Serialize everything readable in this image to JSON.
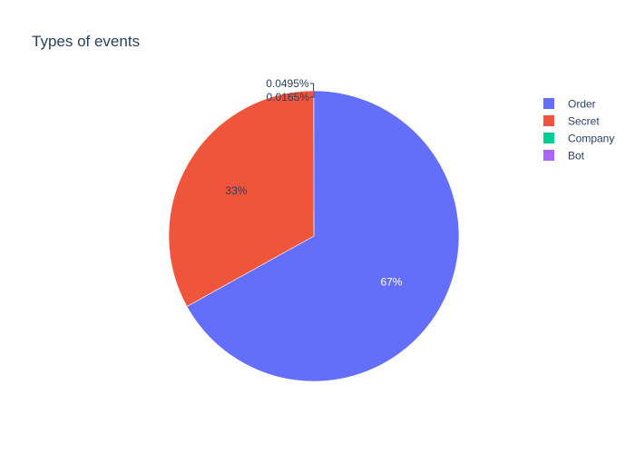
{
  "chart_data": {
    "type": "pie",
    "title": "Types of events",
    "categories": [
      "Order",
      "Secret",
      "Company",
      "Bot"
    ],
    "values": [
      67.0,
      33.0,
      0.0495,
      0.0165
    ],
    "labels": [
      "67%",
      "33%",
      "0.0495%",
      "0.0165%"
    ],
    "colors": [
      "#636efa",
      "#ef553b",
      "#00cc96",
      "#ab63fa"
    ],
    "label_colors": [
      "#ffffff",
      "#2a3f5f",
      "#2a3f5f",
      "#2a3f5f"
    ],
    "legend": "right"
  }
}
